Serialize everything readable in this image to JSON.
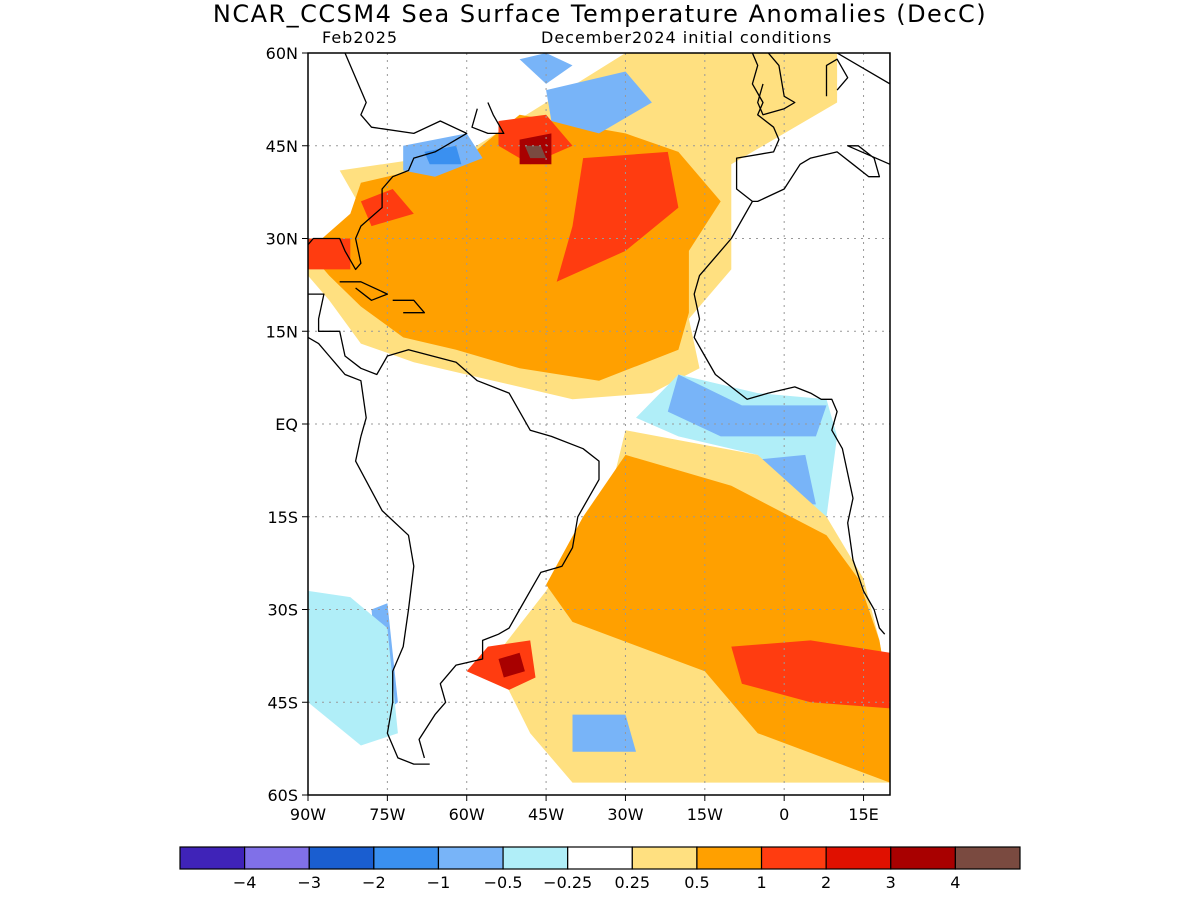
{
  "title": "NCAR_CCSM4 Sea Surface Temperature Anomalies (DecC)",
  "subtitle_left": "Feb2025",
  "subtitle_right": "December2024 initial conditions",
  "lat_ticks": [
    {
      "value": 60,
      "label": "60N"
    },
    {
      "value": 45,
      "label": "45N"
    },
    {
      "value": 30,
      "label": "30N"
    },
    {
      "value": 15,
      "label": "15N"
    },
    {
      "value": 0,
      "label": "EQ"
    },
    {
      "value": -15,
      "label": "15S"
    },
    {
      "value": -30,
      "label": "30S"
    },
    {
      "value": -45,
      "label": "45S"
    },
    {
      "value": -60,
      "label": "60S"
    }
  ],
  "lon_ticks": [
    {
      "value": -90,
      "label": "90W"
    },
    {
      "value": -75,
      "label": "75W"
    },
    {
      "value": -60,
      "label": "60W"
    },
    {
      "value": -45,
      "label": "45W"
    },
    {
      "value": -30,
      "label": "30W"
    },
    {
      "value": -15,
      "label": "15W"
    },
    {
      "value": 0,
      "label": "0"
    },
    {
      "value": 15,
      "label": "15E"
    }
  ],
  "map_extent": {
    "lon": [
      -90,
      20
    ],
    "lat": [
      -60,
      60
    ]
  },
  "colorbar": {
    "colors": [
      "#3f23b8",
      "#8070e8",
      "#1a5ed0",
      "#3a90f0",
      "#78b4f8",
      "#b0eef8",
      "#ffffff",
      "#ffe080",
      "#ffa000",
      "#ff3c10",
      "#e01000",
      "#a80000",
      "#7a4a40"
    ],
    "labels": [
      "−4",
      "−3",
      "−2",
      "−1",
      "−0.5",
      "−0.25",
      "0.25",
      "0.5",
      "1",
      "2",
      "3",
      "4"
    ]
  },
  "anomaly_regions": [
    {
      "level": "0.5",
      "color": "#ffe080",
      "points": [
        [
          -84,
          41
        ],
        [
          -60,
          44
        ],
        [
          -45,
          52
        ],
        [
          -30,
          60
        ],
        [
          10,
          60
        ],
        [
          10,
          52
        ],
        [
          -10,
          42
        ],
        [
          -10,
          25
        ],
        [
          -18,
          17
        ],
        [
          -16,
          9
        ],
        [
          -25,
          5
        ],
        [
          -40,
          4
        ],
        [
          -55,
          7
        ],
        [
          -70,
          10
        ],
        [
          -80,
          13
        ],
        [
          -86,
          20
        ],
        [
          -90,
          24
        ],
        [
          -90,
          28
        ],
        [
          -80,
          35
        ]
      ]
    },
    {
      "level": "1",
      "color": "#ffa000",
      "points": [
        [
          -80,
          39
        ],
        [
          -60,
          43
        ],
        [
          -50,
          50
        ],
        [
          -30,
          47
        ],
        [
          -20,
          44
        ],
        [
          -12,
          36
        ],
        [
          -18,
          28
        ],
        [
          -18,
          18
        ],
        [
          -20,
          12
        ],
        [
          -35,
          7
        ],
        [
          -50,
          9
        ],
        [
          -62,
          12
        ],
        [
          -72,
          14
        ],
        [
          -80,
          19
        ],
        [
          -86,
          24
        ],
        [
          -90,
          28
        ],
        [
          -82,
          34
        ]
      ]
    },
    {
      "level": "2",
      "color": "#ff3c10",
      "points": [
        [
          -38,
          43
        ],
        [
          -22,
          44
        ],
        [
          -20,
          35
        ],
        [
          -30,
          28
        ],
        [
          -43,
          23
        ],
        [
          -40,
          32
        ]
      ]
    },
    {
      "level": "2",
      "color": "#ff3c10",
      "points": [
        [
          -80,
          36
        ],
        [
          -74,
          38
        ],
        [
          -70,
          34
        ],
        [
          -78,
          32
        ]
      ]
    },
    {
      "level": "2",
      "color": "#ff3c10",
      "points": [
        [
          -90,
          30
        ],
        [
          -82,
          30
        ],
        [
          -82,
          25
        ],
        [
          -90,
          25
        ]
      ]
    },
    {
      "level": "2",
      "color": "#ff3c10",
      "points": [
        [
          -54,
          49
        ],
        [
          -45,
          50
        ],
        [
          -40,
          45
        ],
        [
          -48,
          42
        ],
        [
          -54,
          45
        ]
      ]
    },
    {
      "level": "3",
      "color": "#a80000",
      "points": [
        [
          -50,
          46
        ],
        [
          -44,
          47
        ],
        [
          -44,
          42
        ],
        [
          -50,
          42
        ]
      ]
    },
    {
      "level": "4",
      "color": "#7a4a40",
      "points": [
        [
          -49,
          45
        ],
        [
          -46,
          45
        ],
        [
          -45,
          43
        ],
        [
          -48,
          43
        ]
      ]
    },
    {
      "level": "-1",
      "color": "#78b4f8",
      "points": [
        [
          -72,
          45
        ],
        [
          -60,
          47
        ],
        [
          -57,
          43
        ],
        [
          -66,
          40
        ],
        [
          -72,
          41
        ]
      ]
    },
    {
      "level": "-2",
      "color": "#3a90f0",
      "points": [
        [
          -68,
          44
        ],
        [
          -62,
          45
        ],
        [
          -61,
          42
        ],
        [
          -67,
          42
        ]
      ]
    },
    {
      "level": "-1",
      "color": "#78b4f8",
      "points": [
        [
          -50,
          59
        ],
        [
          -45,
          60
        ],
        [
          -40,
          58
        ],
        [
          -45,
          55
        ]
      ]
    },
    {
      "level": "-1",
      "color": "#78b4f8",
      "points": [
        [
          -45,
          54
        ],
        [
          -30,
          57
        ],
        [
          -25,
          52
        ],
        [
          -35,
          47
        ],
        [
          -44,
          49
        ]
      ]
    },
    {
      "level": "-0.5",
      "color": "#b0eef8",
      "points": [
        [
          -20,
          8
        ],
        [
          -5,
          5
        ],
        [
          8,
          4
        ],
        [
          10,
          -2
        ],
        [
          8,
          -15
        ],
        [
          2,
          -15
        ],
        [
          -5,
          -5
        ],
        [
          -20,
          -2
        ],
        [
          -28,
          1
        ]
      ]
    },
    {
      "level": "-1",
      "color": "#78b4f8",
      "points": [
        [
          -20,
          8
        ],
        [
          -8,
          3
        ],
        [
          8,
          3
        ],
        [
          6,
          -2
        ],
        [
          -12,
          -2
        ],
        [
          -22,
          2
        ]
      ]
    },
    {
      "level": "-1",
      "color": "#78b4f8",
      "points": [
        [
          -8,
          -6
        ],
        [
          4,
          -5
        ],
        [
          6,
          -13
        ],
        [
          -2,
          -13
        ]
      ]
    },
    {
      "level": "0.5",
      "color": "#ffe080",
      "points": [
        [
          -30,
          -1
        ],
        [
          -5,
          -5
        ],
        [
          8,
          -15
        ],
        [
          15,
          -25
        ],
        [
          18,
          -35
        ],
        [
          20,
          -45
        ],
        [
          20,
          -58
        ],
        [
          -40,
          -58
        ],
        [
          -48,
          -50
        ],
        [
          -55,
          -38
        ],
        [
          -45,
          -27
        ],
        [
          -40,
          -20
        ],
        [
          -32,
          -8
        ]
      ]
    },
    {
      "level": "1",
      "color": "#ffa000",
      "points": [
        [
          -30,
          -5
        ],
        [
          -10,
          -10
        ],
        [
          8,
          -18
        ],
        [
          14,
          -25
        ],
        [
          18,
          -35
        ],
        [
          20,
          -45
        ],
        [
          20,
          -58
        ],
        [
          -5,
          -50
        ],
        [
          -15,
          -40
        ],
        [
          -40,
          -32
        ],
        [
          -45,
          -26
        ],
        [
          -38,
          -15
        ]
      ]
    },
    {
      "level": "2",
      "color": "#ff3c10",
      "points": [
        [
          -10,
          -36
        ],
        [
          5,
          -35
        ],
        [
          20,
          -37
        ],
        [
          20,
          -46
        ],
        [
          5,
          -45
        ],
        [
          -8,
          -42
        ]
      ]
    },
    {
      "level": "2",
      "color": "#ff3c10",
      "points": [
        [
          -56,
          -36
        ],
        [
          -48,
          -35
        ],
        [
          -47,
          -41
        ],
        [
          -52,
          -43
        ],
        [
          -60,
          -40
        ]
      ]
    },
    {
      "level": "3",
      "color": "#a80000",
      "points": [
        [
          -54,
          -38
        ],
        [
          -50,
          -37
        ],
        [
          -49,
          -40
        ],
        [
          -53,
          -41
        ]
      ]
    },
    {
      "level": "-1",
      "color": "#78b4f8",
      "points": [
        [
          -78,
          -30
        ],
        [
          -75,
          -29
        ],
        [
          -73,
          -45
        ],
        [
          -76,
          -47
        ]
      ]
    },
    {
      "level": "-1",
      "color": "#78b4f8",
      "points": [
        [
          -40,
          -47
        ],
        [
          -30,
          -47
        ],
        [
          -28,
          -53
        ],
        [
          -40,
          -53
        ]
      ]
    },
    {
      "level": "-0.5",
      "color": "#b0eef8",
      "points": [
        [
          -90,
          -27
        ],
        [
          -82,
          -28
        ],
        [
          -75,
          -33
        ],
        [
          -73,
          -50
        ],
        [
          -80,
          -52
        ],
        [
          -90,
          -45
        ]
      ]
    }
  ],
  "coastlines": [
    [
      [
        -83,
        60
      ],
      [
        -79,
        52
      ],
      [
        -80,
        50
      ],
      [
        -78,
        48
      ],
      [
        -70,
        47
      ],
      [
        -65,
        49
      ],
      [
        -60,
        47
      ],
      [
        -64,
        45
      ],
      [
        -66,
        44
      ],
      [
        -70,
        43
      ],
      [
        -71,
        41
      ],
      [
        -74,
        40
      ],
      [
        -76,
        38
      ],
      [
        -76,
        35
      ],
      [
        -80,
        32
      ],
      [
        -81,
        30
      ],
      [
        -80,
        26
      ],
      [
        -81,
        25
      ],
      [
        -83,
        28
      ],
      [
        -84,
        30
      ],
      [
        -89,
        30
      ],
      [
        -90,
        29
      ]
    ],
    [
      [
        -90,
        21
      ],
      [
        -87,
        21
      ],
      [
        -88,
        17
      ],
      [
        -88,
        15
      ],
      [
        -84,
        15
      ],
      [
        -83,
        11
      ],
      [
        -80,
        9
      ],
      [
        -77,
        8
      ],
      [
        -75,
        11
      ],
      [
        -71,
        12
      ],
      [
        -62,
        10
      ],
      [
        -58,
        7
      ],
      [
        -52,
        5
      ],
      [
        -50,
        2
      ],
      [
        -48,
        -1
      ],
      [
        -44,
        -2
      ],
      [
        -38,
        -4
      ],
      [
        -35,
        -6
      ],
      [
        -35,
        -9
      ],
      [
        -37,
        -12
      ],
      [
        -39,
        -15
      ],
      [
        -40,
        -20
      ],
      [
        -42,
        -23
      ],
      [
        -46,
        -24
      ],
      [
        -48,
        -27
      ],
      [
        -50,
        -30
      ],
      [
        -52,
        -33
      ],
      [
        -54,
        -34
      ],
      [
        -57,
        -35
      ],
      [
        -57,
        -38
      ],
      [
        -62,
        -39
      ],
      [
        -65,
        -42
      ],
      [
        -64,
        -45
      ],
      [
        -66,
        -47
      ],
      [
        -69,
        -51
      ],
      [
        -68,
        -54
      ]
    ],
    [
      [
        -80,
        -2
      ],
      [
        -81,
        -6
      ],
      [
        -76,
        -14
      ],
      [
        -71,
        -18
      ],
      [
        -70,
        -23
      ],
      [
        -71,
        -30
      ],
      [
        -72,
        -36
      ],
      [
        -74,
        -40
      ],
      [
        -74,
        -45
      ],
      [
        -75,
        -50
      ],
      [
        -73,
        -54
      ],
      [
        -70,
        -55
      ],
      [
        -67,
        -55
      ]
    ],
    [
      [
        -90,
        14
      ],
      [
        -88,
        13
      ],
      [
        -86,
        11
      ],
      [
        -85,
        10
      ],
      [
        -83,
        8
      ],
      [
        -80,
        7
      ],
      [
        -79,
        1
      ],
      [
        -80,
        -2
      ]
    ],
    [
      [
        -6,
        60
      ],
      [
        -5,
        58
      ],
      [
        -6,
        55
      ],
      [
        -4,
        52
      ],
      [
        -5,
        50
      ],
      [
        -2,
        48
      ],
      [
        -1,
        46
      ],
      [
        -2,
        44
      ],
      [
        -9,
        43
      ],
      [
        -9,
        38
      ],
      [
        -6,
        36
      ],
      [
        -5,
        36
      ],
      [
        0,
        38
      ],
      [
        3,
        42
      ],
      [
        5,
        43
      ],
      [
        10,
        44
      ],
      [
        13,
        42
      ],
      [
        16,
        40
      ],
      [
        18,
        40
      ],
      [
        17,
        43
      ],
      [
        14,
        45
      ],
      [
        12,
        45
      ],
      [
        20,
        42
      ]
    ],
    [
      [
        -6,
        36
      ],
      [
        -10,
        30
      ],
      [
        -13,
        27
      ],
      [
        -16,
        24
      ],
      [
        -17,
        21
      ],
      [
        -16,
        17
      ],
      [
        -17,
        14
      ],
      [
        -15,
        11
      ],
      [
        -13,
        8
      ],
      [
        -10,
        6
      ],
      [
        -7,
        4
      ],
      [
        -3,
        5
      ],
      [
        2,
        6
      ],
      [
        5,
        5
      ],
      [
        7,
        4
      ],
      [
        9,
        4
      ],
      [
        10,
        2
      ],
      [
        9,
        -1
      ],
      [
        11,
        -4
      ],
      [
        12,
        -8
      ],
      [
        13,
        -12
      ],
      [
        12,
        -16
      ],
      [
        13,
        -22
      ],
      [
        15,
        -27
      ],
      [
        17,
        -30
      ],
      [
        18,
        -33
      ],
      [
        19,
        -34
      ]
    ],
    [
      [
        -56,
        52
      ],
      [
        -55,
        50
      ],
      [
        -53,
        47
      ],
      [
        -56,
        47
      ],
      [
        -59,
        48
      ],
      [
        -58,
        51
      ]
    ],
    [
      [
        -84,
        23
      ],
      [
        -80,
        23
      ],
      [
        -75,
        21
      ],
      [
        -78,
        20
      ],
      [
        -81,
        22
      ]
    ],
    [
      [
        -74,
        20
      ],
      [
        -70,
        20
      ],
      [
        -68,
        18
      ],
      [
        -72,
        18
      ]
    ],
    [
      [
        -3,
        60
      ],
      [
        -1,
        58
      ],
      [
        0,
        53
      ],
      [
        2,
        52
      ],
      [
        0,
        51
      ],
      [
        -4,
        50
      ],
      [
        -5,
        52
      ],
      [
        -4,
        55
      ]
    ],
    [
      [
        8,
        53
      ],
      [
        8,
        58
      ],
      [
        10,
        59
      ],
      [
        12,
        56
      ],
      [
        10,
        54
      ]
    ],
    [
      [
        10,
        60
      ],
      [
        20,
        55
      ],
      [
        20,
        60
      ]
    ]
  ]
}
